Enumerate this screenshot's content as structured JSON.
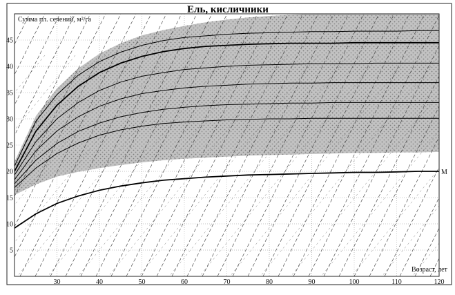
{
  "chart_data": {
    "type": "line",
    "title": "Ель, кисличники",
    "ylabel": "Сумма пл. сечений, м²/га",
    "xlabel": "Возраст, лет",
    "xlim": [
      20,
      120
    ],
    "ylim": [
      0,
      50
    ],
    "xticks": [
      30,
      40,
      50,
      60,
      70,
      80,
      90,
      100,
      110,
      120
    ],
    "yticks": [
      5,
      10,
      15,
      20,
      25,
      30,
      35,
      40,
      45
    ],
    "x": [
      20,
      25,
      30,
      35,
      40,
      45,
      50,
      55,
      60,
      65,
      70,
      75,
      80,
      85,
      90,
      95,
      100,
      105,
      110,
      115,
      120
    ],
    "band": {
      "name": "range",
      "upper": [
        21.8,
        30.5,
        35.8,
        39.6,
        42.4,
        44.4,
        45.9,
        46.9,
        47.7,
        48.4,
        48.9,
        49.3,
        49.6,
        49.8,
        50.0,
        50.0,
        50.0,
        50.0,
        50.0,
        50.0,
        50.0
      ],
      "lower": [
        15.5,
        17.5,
        19.0,
        19.9,
        20.6,
        21.2,
        21.7,
        22.1,
        22.4,
        22.6,
        22.8,
        23.0,
        23.1,
        23.2,
        23.3,
        23.4,
        23.5,
        23.5,
        23.6,
        23.6,
        23.7
      ]
    },
    "series": [
      {
        "name": "",
        "values": [
          21.0,
          29.5,
          34.6,
          38.3,
          40.9,
          42.7,
          44.0,
          44.9,
          45.5,
          45.8,
          46.1,
          46.3,
          46.4,
          46.5,
          46.6,
          46.6,
          46.7,
          46.7,
          46.7,
          46.8,
          46.8
        ]
      },
      {
        "name": "",
        "values": [
          20.0,
          27.6,
          32.6,
          36.2,
          38.8,
          40.6,
          41.9,
          42.8,
          43.4,
          43.8,
          44.0,
          44.2,
          44.3,
          44.4,
          44.4,
          44.4,
          44.5,
          44.5,
          44.5,
          44.5,
          44.5
        ]
      },
      {
        "name": "",
        "values": [
          19.3,
          25.6,
          30.0,
          33.1,
          35.4,
          37.0,
          38.1,
          38.8,
          39.4,
          39.7,
          40.0,
          40.2,
          40.3,
          40.4,
          40.5,
          40.5,
          40.5,
          40.6,
          40.6,
          40.6,
          40.6
        ]
      },
      {
        "name": "",
        "values": [
          18.4,
          23.9,
          27.7,
          30.4,
          32.4,
          33.8,
          34.8,
          35.4,
          35.9,
          36.2,
          36.4,
          36.6,
          36.7,
          36.8,
          36.8,
          36.9,
          36.9,
          36.9,
          36.9,
          36.9,
          36.9
        ]
      },
      {
        "name": "",
        "values": [
          17.6,
          22.1,
          25.3,
          27.6,
          29.2,
          30.4,
          31.2,
          31.8,
          32.2,
          32.5,
          32.7,
          32.8,
          32.9,
          33.0,
          33.0,
          33.1,
          33.1,
          33.1,
          33.1,
          33.1,
          33.1
        ]
      },
      {
        "name": "",
        "values": [
          16.9,
          20.6,
          23.4,
          25.4,
          26.9,
          27.9,
          28.6,
          29.1,
          29.4,
          29.6,
          29.8,
          29.9,
          30.0,
          30.0,
          30.1,
          30.1,
          30.1,
          30.1,
          30.1,
          30.1,
          30.1
        ]
      },
      {
        "name": "M",
        "values": [
          9.2,
          11.9,
          13.9,
          15.3,
          16.4,
          17.2,
          17.8,
          18.3,
          18.6,
          18.9,
          19.1,
          19.3,
          19.4,
          19.5,
          19.6,
          19.7,
          19.8,
          19.8,
          19.9,
          20.0,
          20.0
        ]
      }
    ],
    "grid": true,
    "legend": "none",
    "colors": {
      "band": "#b0b0b0",
      "line": "#000000",
      "grid": "#888888",
      "hatch": "#333333"
    }
  }
}
